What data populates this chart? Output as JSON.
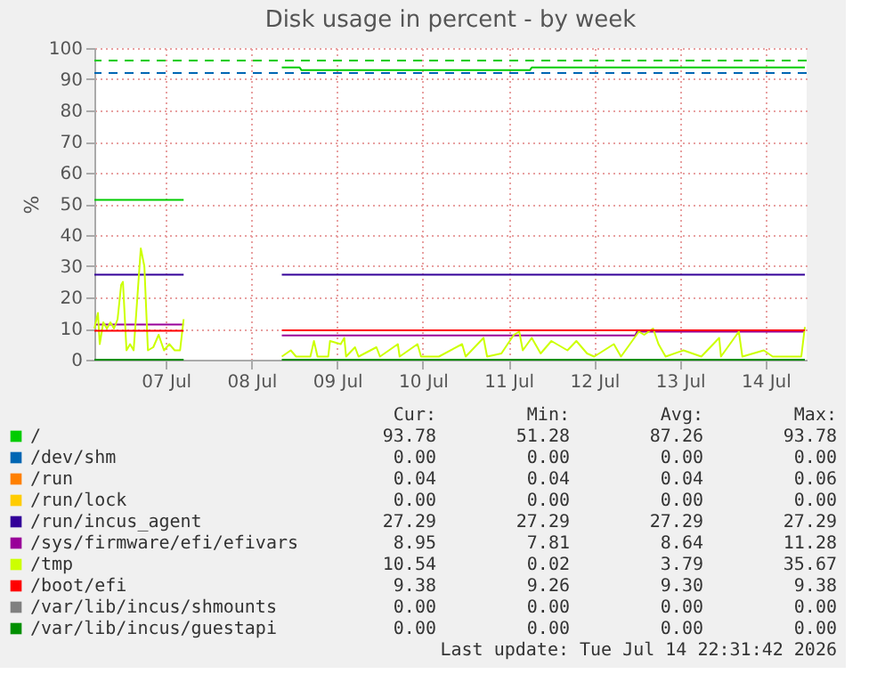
{
  "chart_data": {
    "type": "line",
    "title": "Disk usage in percent - by week",
    "ylabel": "%",
    "xlim": [
      "2026-07-06T16:00",
      "2026-07-14T23:30"
    ],
    "xticks": [
      {
        "value": "2026-07-07T12:00",
        "label": "07 Jul"
      },
      {
        "value": "2026-07-08T12:00",
        "label": "08 Jul"
      },
      {
        "value": "2026-07-09T12:00",
        "label": "09 Jul"
      },
      {
        "value": "2026-07-10T12:00",
        "label": "10 Jul"
      },
      {
        "value": "2026-07-11T12:00",
        "label": "11 Jul"
      },
      {
        "value": "2026-07-12T12:00",
        "label": "12 Jul"
      },
      {
        "value": "2026-07-13T12:00",
        "label": "13 Jul"
      },
      {
        "value": "2026-07-14T12:00",
        "label": "14 Jul"
      }
    ],
    "ylim": [
      0,
      100
    ],
    "yticks": [
      0,
      10,
      20,
      30,
      40,
      50,
      60,
      70,
      80,
      90,
      100
    ],
    "grid": true,
    "legend": "bottom",
    "series": [
      {
        "name": "/",
        "color": "#00cc00",
        "x": [
          "2026-07-06T16:00",
          "2026-07-07T17:00",
          "2026-07-08T07:00",
          "2026-07-08T20:30",
          "2026-07-09T01:30",
          "2026-07-09T02:00",
          "2026-07-11T18:00",
          "2026-07-11T18:30",
          "2026-07-14T23:00"
        ],
        "values": [
          51.3,
          51.3,
          null,
          93.8,
          93.8,
          92.9,
          92.9,
          93.8,
          93.8
        ]
      },
      {
        "name": "/dev/shm",
        "color": "#0066b3"
      },
      {
        "name": "/run",
        "color": "#ff8000"
      },
      {
        "name": "/run/lock",
        "color": "#ffcc00"
      },
      {
        "name": "/run/incus_agent",
        "color": "#330099",
        "x": [
          "2026-07-06T16:00",
          "2026-07-07T17:00",
          "2026-07-08T07:00",
          "2026-07-08T20:30",
          "2026-07-14T23:00"
        ],
        "values": [
          27.3,
          27.3,
          null,
          27.3,
          27.3
        ]
      },
      {
        "name": "/sys/firmware/efi/efivars",
        "color": "#990099",
        "x": [
          "2026-07-06T16:00",
          "2026-07-07T17:00",
          "2026-07-08T07:00",
          "2026-07-08T20:30",
          "2026-07-12T23:30",
          "2026-07-13T00:00",
          "2026-07-14T23:00"
        ],
        "values": [
          11.3,
          11.3,
          null,
          7.8,
          7.8,
          9.0,
          9.0
        ]
      },
      {
        "name": "/tmp",
        "color": "#ccff00",
        "x": [
          "2026-07-06T16:00",
          "2026-07-06T17:00",
          "2026-07-06T17:30",
          "2026-07-06T18:30",
          "2026-07-06T19:30",
          "2026-07-06T20:30",
          "2026-07-06T21:30",
          "2026-07-06T22:30",
          "2026-07-06T23:30",
          "2026-07-07T00:00",
          "2026-07-07T01:00",
          "2026-07-07T02:00",
          "2026-07-07T03:00",
          "2026-07-07T05:00",
          "2026-07-07T06:00",
          "2026-07-07T07:00",
          "2026-07-07T08:30",
          "2026-07-07T10:00",
          "2026-07-07T11:30",
          "2026-07-07T13:00",
          "2026-07-07T14:30",
          "2026-07-07T16:00",
          "2026-07-07T17:00",
          "2026-07-08T07:00",
          "2026-07-08T20:30",
          "2026-07-08T23:00",
          "2026-07-09T00:30",
          "2026-07-09T04:30",
          "2026-07-09T05:30",
          "2026-07-09T06:30",
          "2026-07-09T09:30",
          "2026-07-09T10:00",
          "2026-07-09T13:00",
          "2026-07-09T14:00",
          "2026-07-09T14:30",
          "2026-07-09T17:00",
          "2026-07-09T18:00",
          "2026-07-09T23:00",
          "2026-07-10T00:00",
          "2026-07-10T05:00",
          "2026-07-10T05:30",
          "2026-07-10T10:30",
          "2026-07-10T11:30",
          "2026-07-10T16:30",
          "2026-07-10T23:00",
          "2026-07-11T00:00",
          "2026-07-11T05:00",
          "2026-07-11T06:00",
          "2026-07-11T10:00",
          "2026-07-11T13:30",
          "2026-07-11T15:00",
          "2026-07-11T16:00",
          "2026-07-11T18:30",
          "2026-07-11T21:00",
          "2026-07-12T00:00",
          "2026-07-12T04:30",
          "2026-07-12T07:00",
          "2026-07-12T10:00",
          "2026-07-12T12:00",
          "2026-07-12T17:30",
          "2026-07-12T19:30",
          "2026-07-12T22:00",
          "2026-07-13T00:30",
          "2026-07-13T02:00",
          "2026-07-13T04:30",
          "2026-07-13T06:00",
          "2026-07-13T08:00",
          "2026-07-13T13:00",
          "2026-07-13T18:00",
          "2026-07-13T23:00",
          "2026-07-13T23:30",
          "2026-07-14T04:30",
          "2026-07-14T05:30",
          "2026-07-14T11:30",
          "2026-07-14T14:00",
          "2026-07-14T17:00",
          "2026-07-14T22:00",
          "2026-07-14T23:00"
        ],
        "values": [
          10,
          15,
          5,
          12,
          10,
          12,
          10,
          13,
          24,
          25,
          3,
          5,
          3,
          35.7,
          30,
          3,
          4,
          8,
          3,
          5,
          3,
          3,
          13,
          null,
          1,
          3,
          1,
          1,
          6,
          1,
          1,
          6,
          5,
          7,
          1,
          4,
          1,
          4,
          1,
          5,
          1,
          5,
          1,
          1,
          5,
          1,
          7,
          1,
          2,
          8,
          9,
          3,
          7,
          2,
          6,
          3,
          6,
          2,
          1,
          5,
          1,
          5,
          9,
          8,
          10,
          5,
          1,
          3,
          1,
          7,
          1,
          9,
          1,
          3,
          1,
          1,
          1,
          10.5
        ]
      },
      {
        "name": "/boot/efi",
        "color": "#ff0000",
        "x": [
          "2026-07-06T16:00",
          "2026-07-07T17:00",
          "2026-07-08T07:00",
          "2026-07-08T20:30",
          "2026-07-14T23:00"
        ],
        "values": [
          9.3,
          9.3,
          null,
          9.4,
          9.4
        ]
      },
      {
        "name": "/var/lib/incus/shmounts",
        "color": "#808080"
      },
      {
        "name": "/var/lib/incus/guestapi",
        "color": "#008f00",
        "x": [
          "2026-07-06T16:00",
          "2026-07-07T17:00",
          "2026-07-08T07:00",
          "2026-07-08T20:30",
          "2026-07-14T23:00"
        ],
        "values": [
          0,
          0,
          null,
          0,
          0
        ]
      }
    ],
    "ref_lines": [
      {
        "axis": "y",
        "value": 96,
        "label": null,
        "color": "#00cc00",
        "line_style": "dashed"
      },
      {
        "axis": "y",
        "value": 92,
        "label": null,
        "color": "#0066b3",
        "line_style": "dashed"
      }
    ],
    "annotations": [
      "Cur:",
      "Min:",
      "Avg:",
      "Max:",
      "93.78",
      "51.28",
      "87.26",
      "93.78",
      "0.00",
      "0.00",
      "0.00",
      "0.00",
      "0.04",
      "0.04",
      "0.04",
      "0.06",
      "0.00",
      "0.00",
      "0.00",
      "0.00",
      "27.29",
      "27.29",
      "27.29",
      "27.29",
      "8.95",
      "7.81",
      "8.64",
      "11.28",
      "10.54",
      "0.02",
      "3.79",
      "35.67",
      "9.38",
      "9.26",
      "9.30",
      "9.38",
      "0.00",
      "0.00",
      "0.00",
      "0.00",
      "0.00",
      "0.00",
      "0.00",
      "0.00",
      "Last update: Tue Jul 14 22:31:42 2026"
    ]
  }
}
